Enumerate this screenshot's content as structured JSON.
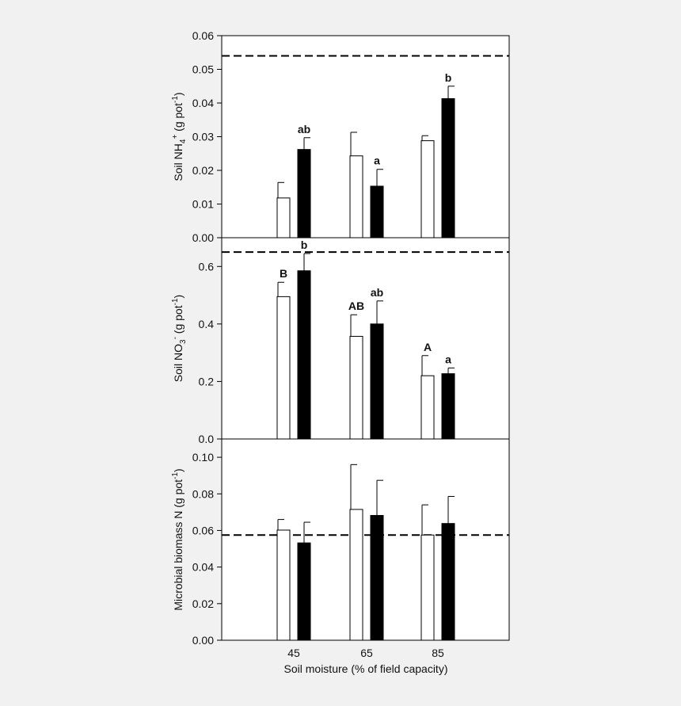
{
  "figure": {
    "xlabel": "Soil moisture (% of field capacity)",
    "background": "#f1f1f1",
    "plot_background": "#ffffff",
    "series_colors": {
      "open": "#ffffff",
      "filled": "#000000"
    }
  },
  "chart_data": [
    {
      "type": "bar",
      "ylabel": "Soil NH4+ (g pot-1)",
      "ylabel_parts": {
        "pre": "Soil NH",
        "sub": "4",
        "sup": "+",
        "mid": " (g pot",
        "sup2": "-1",
        "post": ")"
      },
      "categories": [
        "45",
        "65",
        "85"
      ],
      "ylim": [
        0,
        0.06
      ],
      "yticks": [
        "0.00",
        "0.01",
        "0.02",
        "0.03",
        "0.04",
        "0.05",
        "0.06"
      ],
      "ytick_values": [
        0,
        0.01,
        0.02,
        0.03,
        0.04,
        0.05,
        0.06
      ],
      "reference_line": 0.054,
      "series": [
        {
          "fill": "open",
          "values": [
            0.0118,
            0.0243,
            0.0288
          ],
          "errors": [
            0.0046,
            0.007,
            0.0015
          ],
          "letters": [
            "",
            "",
            ""
          ]
        },
        {
          "fill": "filled",
          "values": [
            0.0262,
            0.0153,
            0.0413
          ],
          "errors": [
            0.0035,
            0.005,
            0.0037
          ],
          "letters": [
            "ab",
            "a",
            "b"
          ]
        }
      ]
    },
    {
      "type": "bar",
      "ylabel": "Soil NO3- (g pot-1)",
      "ylabel_parts": {
        "pre": "Soil NO",
        "sub": "3",
        "sup": "-",
        "mid": " (g pot",
        "sup2": "-1",
        "post": ")"
      },
      "categories": [
        "45",
        "65",
        "85"
      ],
      "ylim": [
        0,
        0.7
      ],
      "yticks": [
        "0.0",
        "0.2",
        "0.4",
        "0.6"
      ],
      "ytick_values": [
        0,
        0.2,
        0.4,
        0.6
      ],
      "reference_line": 0.65,
      "series": [
        {
          "fill": "open",
          "values": [
            0.495,
            0.357,
            0.22
          ],
          "errors": [
            0.05,
            0.075,
            0.07
          ],
          "letters": [
            "B",
            "AB",
            "A"
          ]
        },
        {
          "fill": "filled",
          "values": [
            0.585,
            0.4,
            0.227
          ],
          "errors": [
            0.06,
            0.08,
            0.02
          ],
          "letters": [
            "b",
            "ab",
            "a"
          ]
        }
      ]
    },
    {
      "type": "bar",
      "ylabel": "Microbial biomass N (g pot-1)",
      "ylabel_parts": {
        "pre": "Microbial biomass N",
        "sub": "",
        "sup": "",
        "mid": " (g pot",
        "sup2": "-1",
        "post": ")"
      },
      "categories": [
        "45",
        "65",
        "85"
      ],
      "ylim": [
        0,
        0.11
      ],
      "yticks": [
        "0.00",
        "0.02",
        "0.04",
        "0.06",
        "0.08",
        "0.10"
      ],
      "ytick_values": [
        0,
        0.02,
        0.04,
        0.06,
        0.08,
        0.1
      ],
      "reference_line": 0.0575,
      "series": [
        {
          "fill": "open",
          "values": [
            0.0602,
            0.0715,
            0.0575
          ],
          "errors": [
            0.0058,
            0.0245,
            0.0165
          ],
          "letters": [
            "",
            "",
            ""
          ]
        },
        {
          "fill": "filled",
          "values": [
            0.0532,
            0.0682,
            0.0638
          ],
          "errors": [
            0.0113,
            0.0192,
            0.0148
          ],
          "letters": [
            "",
            "",
            ""
          ]
        }
      ]
    }
  ]
}
